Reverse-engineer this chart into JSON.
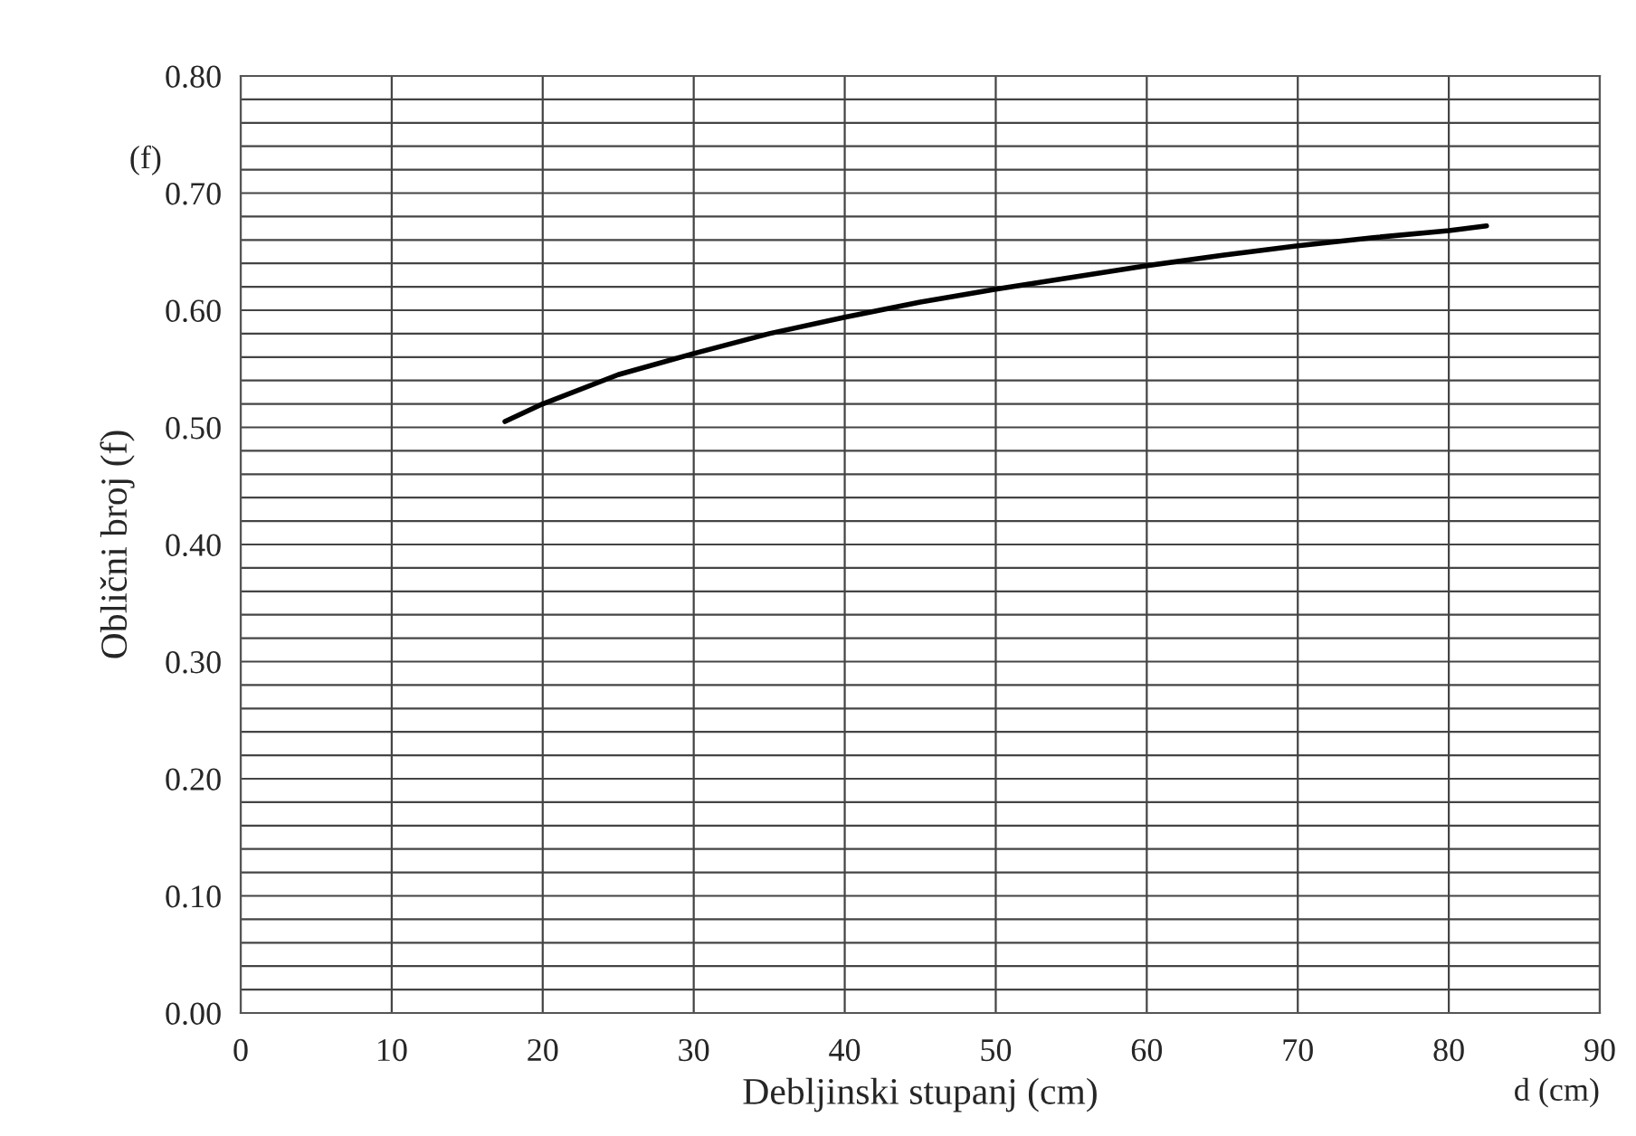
{
  "chart_data": {
    "type": "line",
    "xlabel": "Debljinski stupanj (cm)",
    "ylabel": "Oblični broj (f)",
    "annotations": [
      "(f)",
      "d (cm)"
    ],
    "x": [
      17.5,
      20,
      25,
      30,
      35,
      40,
      45,
      50,
      55,
      60,
      65,
      70,
      75,
      80,
      82.5
    ],
    "series": [
      {
        "color": "#000000",
        "values": [
          0.505,
          0.52,
          0.545,
          0.563,
          0.58,
          0.594,
          0.607,
          0.618,
          0.628,
          0.638,
          0.647,
          0.655,
          0.662,
          0.668,
          0.672
        ]
      }
    ],
    "xlim": [
      0,
      90
    ],
    "xticks": [
      0,
      10,
      20,
      30,
      40,
      50,
      60,
      70,
      80,
      90
    ],
    "ylim": [
      0,
      0.8
    ],
    "yticks": [
      {
        "value": 0,
        "label": "0.00"
      },
      {
        "value": 0.1,
        "label": "0.10"
      },
      {
        "value": 0.2,
        "label": "0.20"
      },
      {
        "value": 0.3,
        "label": "0.30"
      },
      {
        "value": 0.4,
        "label": "0.40"
      },
      {
        "value": 0.5,
        "label": "0.50"
      },
      {
        "value": 0.6,
        "label": "0.60"
      },
      {
        "value": 0.7,
        "label": "0.70"
      },
      {
        "value": 0.8,
        "label": "0.80"
      }
    ],
    "grid": true,
    "legend": false,
    "marker": "none",
    "line_style": "solid"
  }
}
